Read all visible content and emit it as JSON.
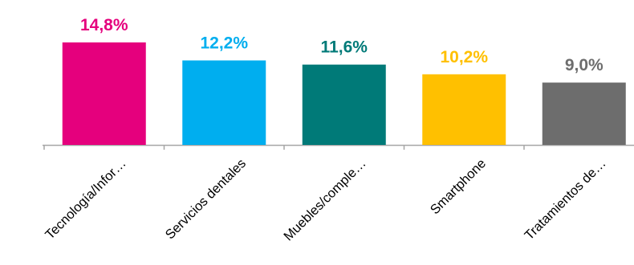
{
  "chart_data": {
    "type": "bar",
    "title": "",
    "xlabel": "",
    "ylabel": "",
    "categories": [
      "Tecnología/Infor…",
      "Servicios dentales",
      "Muebles/comple…",
      "Smartphone",
      "Tratamientos de…"
    ],
    "values": [
      14.8,
      12.2,
      11.6,
      10.2,
      9.0
    ],
    "value_labels": [
      "14,8%",
      "12,2%",
      "11,6%",
      "10,2%",
      "9,0%"
    ],
    "colors": [
      "#e5007d",
      "#00aeef",
      "#007a78",
      "#ffc000",
      "#6d6d6d"
    ],
    "ylim": [
      0,
      14.8
    ],
    "grid": false,
    "legend": "none"
  }
}
